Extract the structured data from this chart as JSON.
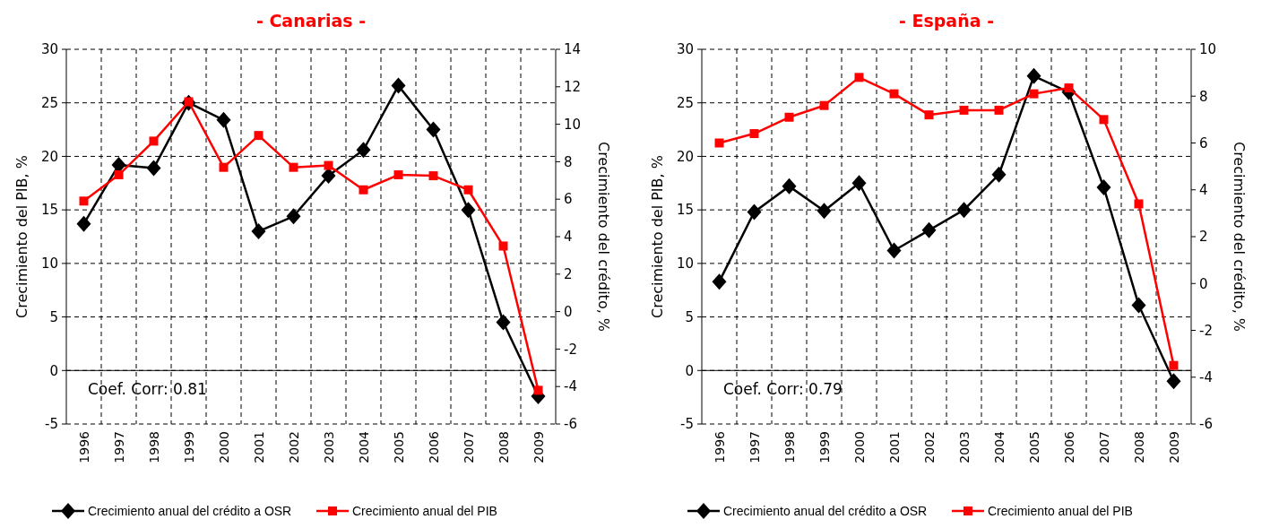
{
  "chart_data": [
    {
      "type": "line",
      "title": "- Canarias -",
      "ylabel": "Crecimiento del PIB, %",
      "y2label": "Crecimiento del crédito, %",
      "categories": [
        "1996",
        "1997",
        "1998",
        "1999",
        "2000",
        "2001",
        "2002",
        "2003",
        "2004",
        "2005",
        "2006",
        "2007",
        "2008",
        "2009"
      ],
      "ylim": [
        -5,
        30
      ],
      "yticks": [
        -5,
        0,
        5,
        10,
        15,
        20,
        25,
        30
      ],
      "y2lim": [
        -6,
        14
      ],
      "y2ticks": [
        -6,
        -4,
        -2,
        0,
        2,
        4,
        6,
        8,
        10,
        12,
        14
      ],
      "grid": true,
      "legend": "bottom",
      "line_style": "solid",
      "annotations": [
        "Coef. Corr: 0.81"
      ],
      "series": [
        {
          "name": "Crecimiento anual del crédito a OSR",
          "color": "#000000",
          "marker": "diamond",
          "values": [
            13.7,
            19.2,
            18.9,
            25,
            23.4,
            13.0,
            14.4,
            18.2,
            20.6,
            26.6,
            22.5,
            15.0,
            4.5,
            -2.4
          ]
        },
        {
          "name": "Crecimiento anual del PIB",
          "color": "#ff0000",
          "marker": "square",
          "axis": "y2",
          "values": [
            5.9,
            7.3,
            9.1,
            11.2,
            7.7,
            9.4,
            7.7,
            7.8,
            6.5,
            7.3,
            7.25,
            6.5,
            3.5,
            -4.2
          ]
        }
      ]
    },
    {
      "type": "line",
      "title": "- España -",
      "ylabel": "Crecimiento del PIB, %",
      "y2label": "Crecimiento del crédito, %",
      "categories": [
        "1996",
        "1997",
        "1998",
        "1999",
        "2000",
        "2001",
        "2002",
        "2003",
        "2004",
        "2005",
        "2006",
        "2007",
        "2008",
        "2009"
      ],
      "ylim": [
        -5,
        30
      ],
      "yticks": [
        -5,
        0,
        5,
        10,
        15,
        20,
        25,
        30
      ],
      "y2lim": [
        -6,
        10
      ],
      "y2ticks": [
        -6,
        -4,
        -2,
        0,
        2,
        4,
        6,
        8,
        10
      ],
      "grid": true,
      "legend": "bottom",
      "line_style": "solid",
      "annotations": [
        "Coef. Corr: 0.79"
      ],
      "series": [
        {
          "name": "Crecimiento anual del crédito a OSR",
          "color": "#000000",
          "marker": "diamond",
          "values": [
            8.3,
            14.8,
            17.2,
            14.9,
            17.5,
            11.2,
            13.1,
            15.0,
            18.3,
            27.5,
            26.0,
            17.1,
            6.1,
            -1.0
          ]
        },
        {
          "name": "Crecimiento anual del PIB",
          "color": "#ff0000",
          "marker": "square",
          "axis": "y2",
          "values": [
            6.0,
            6.4,
            7.1,
            7.6,
            8.8,
            8.1,
            7.2,
            7.4,
            7.4,
            8.1,
            8.35,
            7.0,
            3.4,
            -3.5
          ]
        }
      ]
    }
  ]
}
